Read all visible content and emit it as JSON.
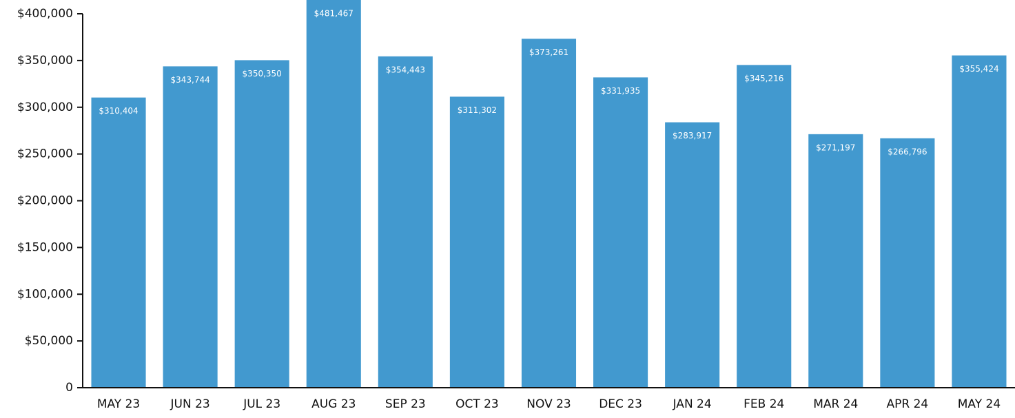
{
  "chart_data": {
    "type": "bar",
    "categories": [
      "MAY 23",
      "JUN 23",
      "JUL 23",
      "AUG 23",
      "SEP 23",
      "OCT 23",
      "NOV 23",
      "DEC 23",
      "JAN 24",
      "FEB 24",
      "MAR 24",
      "APR 24",
      "MAY 24"
    ],
    "values": [
      310404,
      343744,
      350350,
      481467,
      354443,
      311302,
      373261,
      331935,
      283917,
      345216,
      271197,
      266796,
      355424
    ],
    "value_labels": [
      "$310,404",
      "$343,744",
      "$350,350",
      "$481,467",
      "$354,443",
      "$311,302",
      "$373,261",
      "$331,935",
      "$283,917",
      "$345,216",
      "$271,197",
      "$266,796",
      "$355,424"
    ],
    "color": "#4299cf",
    "ylim": [
      0,
      400000
    ],
    "yticks": [
      0,
      {
        "value": 50000,
        "label": "$50,000"
      },
      {
        "value": 100000,
        "label": "$100,000"
      },
      {
        "value": 150000,
        "label": "$150,000"
      },
      {
        "value": 200000,
        "label": "$200,000"
      },
      {
        "value": 250000,
        "label": "$250,000"
      },
      {
        "value": 300000,
        "label": "$300,000"
      },
      {
        "value": 350000,
        "label": "$350,000"
      },
      {
        "value": 400000,
        "label": "$400,000"
      }
    ],
    "grid": false
  }
}
